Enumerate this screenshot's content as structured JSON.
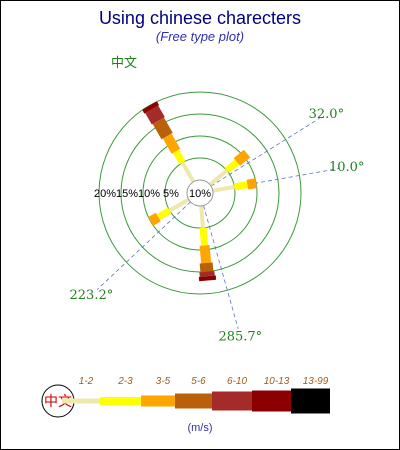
{
  "chart_data": {
    "type": "windrose",
    "title": "Using chinese charecters",
    "subtitle": "(Free type plot)",
    "center_label": "10%",
    "top_label": "中文",
    "rings": [
      5,
      10,
      15,
      20
    ],
    "ring_labels": [
      "5%",
      "10%",
      "15%",
      "20%"
    ],
    "angle_labels": [
      {
        "angle": 32.0,
        "text": "32.0°"
      },
      {
        "angle": 10.0,
        "text": "10.0°"
      },
      {
        "angle": 223.2,
        "text": "223.2°"
      },
      {
        "angle": 285.7,
        "text": "285.7°"
      }
    ],
    "speed_ranges": [
      "1-2",
      "2-3",
      "3-5",
      "5-6",
      "6-10",
      "10-13",
      "13-99"
    ],
    "range_colors": [
      "#eee8aa",
      "#ffff00",
      "#ffa500",
      "#b8600a",
      "#a52a2a",
      "#8b0000",
      "#000000"
    ],
    "unit": "(m/s)",
    "legend_circle_text": "中文",
    "directions": [
      {
        "angle": 120,
        "values": [
          5,
          3,
          4,
          4,
          3,
          1
        ]
      },
      {
        "angle": 40,
        "values": [
          5,
          3,
          3
        ]
      },
      {
        "angle": 10,
        "values": [
          5,
          3,
          2
        ]
      },
      {
        "angle": 210,
        "values": [
          5,
          3,
          2
        ]
      },
      {
        "angle": 275,
        "values": [
          5,
          4,
          4,
          2,
          1,
          1
        ]
      }
    ]
  }
}
